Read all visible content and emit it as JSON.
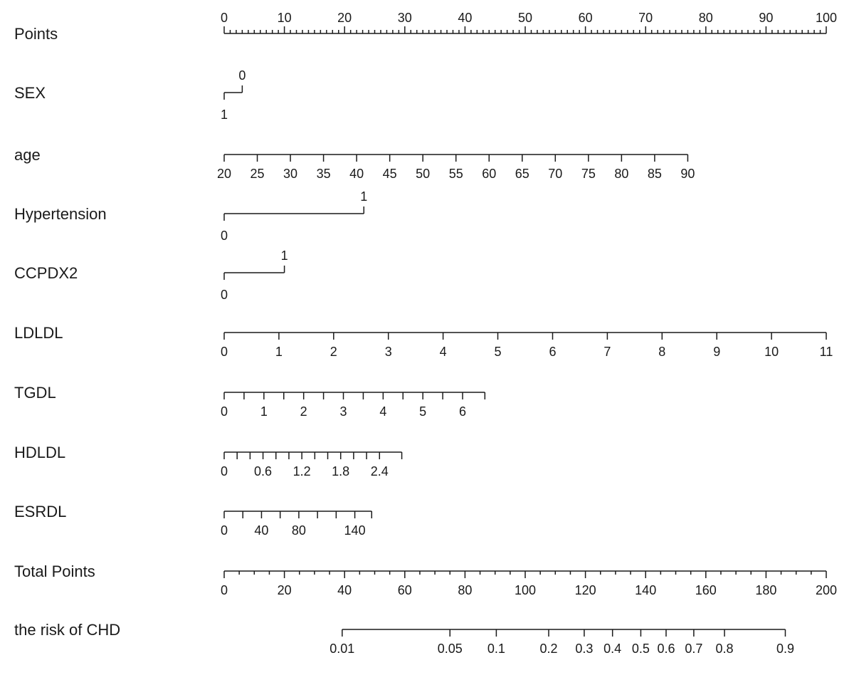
{
  "chart_data": {
    "type": "nomogram",
    "title": "",
    "points_range": [
      0,
      100
    ],
    "rows": [
      {
        "label": "Points",
        "kind": "scale",
        "labels_side": "above",
        "ticks": [
          {
            "label": "0",
            "points": 0
          },
          {
            "label": "10",
            "points": 10
          },
          {
            "label": "20",
            "points": 20
          },
          {
            "label": "30",
            "points": 30
          },
          {
            "label": "40",
            "points": 40
          },
          {
            "label": "50",
            "points": 50
          },
          {
            "label": "60",
            "points": 60
          },
          {
            "label": "70",
            "points": 70
          },
          {
            "label": "80",
            "points": 80
          },
          {
            "label": "90",
            "points": 90
          },
          {
            "label": "100",
            "points": 100
          }
        ],
        "minor_points": [
          1,
          2,
          3,
          4,
          5,
          6,
          7,
          8,
          9,
          11,
          12,
          13,
          14,
          15,
          16,
          17,
          18,
          19,
          21,
          22,
          23,
          24,
          25,
          26,
          27,
          28,
          29,
          31,
          32,
          33,
          34,
          35,
          36,
          37,
          38,
          39,
          41,
          42,
          43,
          44,
          45,
          46,
          47,
          48,
          49,
          51,
          52,
          53,
          54,
          55,
          56,
          57,
          58,
          59,
          61,
          62,
          63,
          64,
          65,
          66,
          67,
          68,
          69,
          71,
          72,
          73,
          74,
          75,
          76,
          77,
          78,
          79,
          81,
          82,
          83,
          84,
          85,
          86,
          87,
          88,
          89,
          91,
          92,
          93,
          94,
          95,
          96,
          97,
          98,
          99
        ]
      },
      {
        "label": "SEX",
        "kind": "binary",
        "ticks": [
          {
            "label": "1",
            "points": 0,
            "side": "below"
          },
          {
            "label": "0",
            "points": 3,
            "side": "above"
          }
        ]
      },
      {
        "label": "age",
        "kind": "scale",
        "labels_side": "below",
        "ticks": [
          {
            "label": "20",
            "points": 0
          },
          {
            "label": "25",
            "points": 5.5
          },
          {
            "label": "30",
            "points": 11
          },
          {
            "label": "35",
            "points": 16.5
          },
          {
            "label": "40",
            "points": 22
          },
          {
            "label": "45",
            "points": 27.5
          },
          {
            "label": "50",
            "points": 33
          },
          {
            "label": "55",
            "points": 38.5
          },
          {
            "label": "60",
            "points": 44
          },
          {
            "label": "65",
            "points": 49.5
          },
          {
            "label": "70",
            "points": 55
          },
          {
            "label": "75",
            "points": 60.5
          },
          {
            "label": "80",
            "points": 66
          },
          {
            "label": "85",
            "points": 71.5
          },
          {
            "label": "90",
            "points": 77
          }
        ]
      },
      {
        "label": "Hypertension",
        "kind": "binary",
        "ticks": [
          {
            "label": "0",
            "points": 0,
            "side": "below"
          },
          {
            "label": "1",
            "points": 23.2,
            "side": "above"
          }
        ]
      },
      {
        "label": "CCPDX2",
        "kind": "binary",
        "ticks": [
          {
            "label": "0",
            "points": 0,
            "side": "below"
          },
          {
            "label": "1",
            "points": 10,
            "side": "above"
          }
        ]
      },
      {
        "label": "LDLDL",
        "kind": "scale",
        "labels_side": "below",
        "ticks": [
          {
            "label": "0",
            "points": 0
          },
          {
            "label": "1",
            "points": 9.09
          },
          {
            "label": "2",
            "points": 18.18
          },
          {
            "label": "3",
            "points": 27.27
          },
          {
            "label": "4",
            "points": 36.36
          },
          {
            "label": "5",
            "points": 45.45
          },
          {
            "label": "6",
            "points": 54.55
          },
          {
            "label": "7",
            "points": 63.64
          },
          {
            "label": "8",
            "points": 72.73
          },
          {
            "label": "9",
            "points": 81.82
          },
          {
            "label": "10",
            "points": 90.91
          },
          {
            "label": "11",
            "points": 100
          }
        ]
      },
      {
        "label": "TGDL",
        "kind": "scale",
        "labels_side": "below",
        "ticks": [
          {
            "label": "0",
            "points": 0
          },
          {
            "label": "",
            "points": 3.3
          },
          {
            "label": "1",
            "points": 6.6
          },
          {
            "label": "",
            "points": 9.9
          },
          {
            "label": "2",
            "points": 13.2
          },
          {
            "label": "",
            "points": 16.5
          },
          {
            "label": "3",
            "points": 19.8
          },
          {
            "label": "",
            "points": 23.1
          },
          {
            "label": "4",
            "points": 26.4
          },
          {
            "label": "",
            "points": 29.7
          },
          {
            "label": "5",
            "points": 33.0
          },
          {
            "label": "",
            "points": 36.3
          },
          {
            "label": "6",
            "points": 39.6
          },
          {
            "label": "",
            "points": 43.3
          }
        ]
      },
      {
        "label": "HDLDL",
        "kind": "scale",
        "labels_side": "below",
        "ticks": [
          {
            "label": "0",
            "points": 0
          },
          {
            "label": "",
            "points": 2.15
          },
          {
            "label": "",
            "points": 4.3
          },
          {
            "label": "0.6",
            "points": 6.45
          },
          {
            "label": "",
            "points": 8.6
          },
          {
            "label": "",
            "points": 10.75
          },
          {
            "label": "1.2",
            "points": 12.9
          },
          {
            "label": "",
            "points": 15.05
          },
          {
            "label": "",
            "points": 17.2
          },
          {
            "label": "1.8",
            "points": 19.35
          },
          {
            "label": "",
            "points": 21.5
          },
          {
            "label": "",
            "points": 23.65
          },
          {
            "label": "2.4",
            "points": 25.8
          },
          {
            "label": "",
            "points": 29.5
          }
        ]
      },
      {
        "label": "ESRDL",
        "kind": "scale",
        "labels_side": "below",
        "ticks": [
          {
            "label": "0",
            "points": 0
          },
          {
            "label": "",
            "points": 3.1
          },
          {
            "label": "40",
            "points": 6.2
          },
          {
            "label": "",
            "points": 9.3
          },
          {
            "label": "80",
            "points": 12.4
          },
          {
            "label": "",
            "points": 15.5
          },
          {
            "label": "",
            "points": 18.6
          },
          {
            "label": "140",
            "points": 21.7
          },
          {
            "label": "",
            "points": 24.5
          }
        ]
      },
      {
        "label": "Total Points",
        "kind": "scale",
        "labels_side": "below",
        "ticks": [
          {
            "label": "0",
            "points": 0
          },
          {
            "label": "20",
            "points": 10
          },
          {
            "label": "40",
            "points": 20
          },
          {
            "label": "60",
            "points": 30
          },
          {
            "label": "80",
            "points": 40
          },
          {
            "label": "100",
            "points": 50
          },
          {
            "label": "120",
            "points": 60
          },
          {
            "label": "140",
            "points": 70
          },
          {
            "label": "160",
            "points": 80
          },
          {
            "label": "180",
            "points": 90
          },
          {
            "label": "200",
            "points": 100
          }
        ],
        "minor_points": [
          2.5,
          5,
          7.5,
          12.5,
          15,
          17.5,
          22.5,
          25,
          27.5,
          32.5,
          35,
          37.5,
          42.5,
          45,
          47.5,
          52.5,
          55,
          57.5,
          62.5,
          65,
          67.5,
          72.5,
          75,
          77.5,
          82.5,
          85,
          87.5,
          92.5,
          95,
          97.5
        ]
      },
      {
        "label": "the risk of CHD",
        "kind": "scale",
        "labels_side": "below",
        "ticks": [
          {
            "label": "0.01",
            "points": 19.6
          },
          {
            "label": "0.05",
            "points": 37.5
          },
          {
            "label": "0.1",
            "points": 45.2
          },
          {
            "label": "0.2",
            "points": 53.9
          },
          {
            "label": "0.3",
            "points": 59.8
          },
          {
            "label": "0.4",
            "points": 64.5
          },
          {
            "label": "0.5",
            "points": 69.2
          },
          {
            "label": "0.6",
            "points": 73.4
          },
          {
            "label": "0.7",
            "points": 78.0
          },
          {
            "label": "0.8",
            "points": 83.1
          },
          {
            "label": "0.9",
            "points": 93.2
          }
        ]
      }
    ]
  }
}
